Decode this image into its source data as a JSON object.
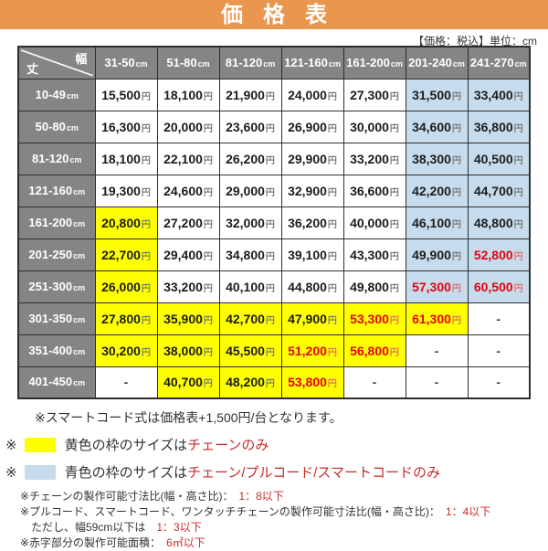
{
  "title": "価格表",
  "tax_note": "【価格：税込】単位：cm",
  "colors": {
    "banner_orange": "#E9964E",
    "header_gray": "#858585",
    "highlight_yellow": "#FFFF00",
    "highlight_blue": "#C6DCEC",
    "price_red": "#E60012",
    "note_red": "#C92B2B"
  },
  "chart_data": {
    "type": "table",
    "title": "価格表",
    "price_unit": "円 (税込)",
    "size_unit": "cm",
    "width_columns_cm": [
      "31-50",
      "51-80",
      "81-120",
      "121-160",
      "161-200",
      "201-240",
      "241-270"
    ],
    "height_rows_cm": [
      "10-49",
      "50-80",
      "81-120",
      "121-160",
      "161-200",
      "201-250",
      "251-300",
      "301-350",
      "351-400",
      "401-450"
    ],
    "prices_yen": [
      [
        15500,
        18100,
        21900,
        24000,
        27300,
        31500,
        33400
      ],
      [
        16300,
        20000,
        23600,
        26900,
        30000,
        34600,
        36800
      ],
      [
        18100,
        22100,
        26200,
        29900,
        33200,
        38300,
        40500
      ],
      [
        19300,
        24600,
        29000,
        32900,
        36600,
        42200,
        44700
      ],
      [
        20800,
        27200,
        32000,
        36200,
        40000,
        46100,
        48800
      ],
      [
        22700,
        29400,
        34800,
        39100,
        43300,
        49900,
        52800
      ],
      [
        26000,
        33200,
        40100,
        44800,
        49800,
        57300,
        60500
      ],
      [
        27800,
        35900,
        42700,
        47900,
        53300,
        61300,
        null
      ],
      [
        30200,
        38000,
        45500,
        51200,
        56800,
        null,
        null
      ],
      [
        null,
        40700,
        48200,
        53800,
        null,
        null,
        null
      ]
    ],
    "legend": {
      "yellow": "チェーンのみ",
      "blue": "チェーン/プルコード/スマートコードのみ",
      "red_text": "製作可能面積 6㎡以下"
    }
  },
  "table": {
    "corner": {
      "width_label": "幅",
      "height_label": "丈"
    },
    "col_headers": [
      {
        "range": "31-50",
        "unit": "cm"
      },
      {
        "range": "51-80",
        "unit": "cm"
      },
      {
        "range": "81-120",
        "unit": "cm"
      },
      {
        "range": "121-160",
        "unit": "cm"
      },
      {
        "range": "161-200",
        "unit": "cm"
      },
      {
        "range": "201-240",
        "unit": "cm"
      },
      {
        "range": "241-270",
        "unit": "cm"
      }
    ],
    "rows": [
      {
        "label": "10-49",
        "unit": "cm",
        "cells": [
          {
            "value": "15,500",
            "unit": "円",
            "bg": "",
            "red": false
          },
          {
            "value": "18,100",
            "unit": "円",
            "bg": "",
            "red": false
          },
          {
            "value": "21,900",
            "unit": "円",
            "bg": "",
            "red": false
          },
          {
            "value": "24,000",
            "unit": "円",
            "bg": "",
            "red": false
          },
          {
            "value": "27,300",
            "unit": "円",
            "bg": "",
            "red": false
          },
          {
            "value": "31,500",
            "unit": "円",
            "bg": "b",
            "red": false
          },
          {
            "value": "33,400",
            "unit": "円",
            "bg": "b",
            "red": false
          }
        ]
      },
      {
        "label": "50-80",
        "unit": "cm",
        "cells": [
          {
            "value": "16,300",
            "unit": "円",
            "bg": "",
            "red": false
          },
          {
            "value": "20,000",
            "unit": "円",
            "bg": "",
            "red": false
          },
          {
            "value": "23,600",
            "unit": "円",
            "bg": "",
            "red": false
          },
          {
            "value": "26,900",
            "unit": "円",
            "bg": "",
            "red": false
          },
          {
            "value": "30,000",
            "unit": "円",
            "bg": "",
            "red": false
          },
          {
            "value": "34,600",
            "unit": "円",
            "bg": "b",
            "red": false
          },
          {
            "value": "36,800",
            "unit": "円",
            "bg": "b",
            "red": false
          }
        ]
      },
      {
        "label": "81-120",
        "unit": "cm",
        "cells": [
          {
            "value": "18,100",
            "unit": "円",
            "bg": "",
            "red": false
          },
          {
            "value": "22,100",
            "unit": "円",
            "bg": "",
            "red": false
          },
          {
            "value": "26,200",
            "unit": "円",
            "bg": "",
            "red": false
          },
          {
            "value": "29,900",
            "unit": "円",
            "bg": "",
            "red": false
          },
          {
            "value": "33,200",
            "unit": "円",
            "bg": "",
            "red": false
          },
          {
            "value": "38,300",
            "unit": "円",
            "bg": "b",
            "red": false
          },
          {
            "value": "40,500",
            "unit": "円",
            "bg": "b",
            "red": false
          }
        ]
      },
      {
        "label": "121-160",
        "unit": "cm",
        "cells": [
          {
            "value": "19,300",
            "unit": "円",
            "bg": "",
            "red": false
          },
          {
            "value": "24,600",
            "unit": "円",
            "bg": "",
            "red": false
          },
          {
            "value": "29,000",
            "unit": "円",
            "bg": "",
            "red": false
          },
          {
            "value": "32,900",
            "unit": "円",
            "bg": "",
            "red": false
          },
          {
            "value": "36,600",
            "unit": "円",
            "bg": "",
            "red": false
          },
          {
            "value": "42,200",
            "unit": "円",
            "bg": "b",
            "red": false
          },
          {
            "value": "44,700",
            "unit": "円",
            "bg": "b",
            "red": false
          }
        ]
      },
      {
        "label": "161-200",
        "unit": "cm",
        "cells": [
          {
            "value": "20,800",
            "unit": "円",
            "bg": "y",
            "red": false
          },
          {
            "value": "27,200",
            "unit": "円",
            "bg": "",
            "red": false
          },
          {
            "value": "32,000",
            "unit": "円",
            "bg": "",
            "red": false
          },
          {
            "value": "36,200",
            "unit": "円",
            "bg": "",
            "red": false
          },
          {
            "value": "40,000",
            "unit": "円",
            "bg": "",
            "red": false
          },
          {
            "value": "46,100",
            "unit": "円",
            "bg": "b",
            "red": false
          },
          {
            "value": "48,800",
            "unit": "円",
            "bg": "b",
            "red": false
          }
        ]
      },
      {
        "label": "201-250",
        "unit": "cm",
        "cells": [
          {
            "value": "22,700",
            "unit": "円",
            "bg": "y",
            "red": false
          },
          {
            "value": "29,400",
            "unit": "円",
            "bg": "",
            "red": false
          },
          {
            "value": "34,800",
            "unit": "円",
            "bg": "",
            "red": false
          },
          {
            "value": "39,100",
            "unit": "円",
            "bg": "",
            "red": false
          },
          {
            "value": "43,300",
            "unit": "円",
            "bg": "",
            "red": false
          },
          {
            "value": "49,900",
            "unit": "円",
            "bg": "b",
            "red": false
          },
          {
            "value": "52,800",
            "unit": "円",
            "bg": "b",
            "red": true
          }
        ]
      },
      {
        "label": "251-300",
        "unit": "cm",
        "cells": [
          {
            "value": "26,000",
            "unit": "円",
            "bg": "y",
            "red": false
          },
          {
            "value": "33,200",
            "unit": "円",
            "bg": "",
            "red": false
          },
          {
            "value": "40,100",
            "unit": "円",
            "bg": "",
            "red": false
          },
          {
            "value": "44,800",
            "unit": "円",
            "bg": "",
            "red": false
          },
          {
            "value": "49,800",
            "unit": "円",
            "bg": "",
            "red": false
          },
          {
            "value": "57,300",
            "unit": "円",
            "bg": "b",
            "red": true
          },
          {
            "value": "60,500",
            "unit": "円",
            "bg": "b",
            "red": true
          }
        ]
      },
      {
        "label": "301-350",
        "unit": "cm",
        "cells": [
          {
            "value": "27,800",
            "unit": "円",
            "bg": "y",
            "red": false
          },
          {
            "value": "35,900",
            "unit": "円",
            "bg": "y",
            "red": false
          },
          {
            "value": "42,700",
            "unit": "円",
            "bg": "y",
            "red": false
          },
          {
            "value": "47,900",
            "unit": "円",
            "bg": "y",
            "red": false
          },
          {
            "value": "53,300",
            "unit": "円",
            "bg": "y",
            "red": true
          },
          {
            "value": "61,300",
            "unit": "円",
            "bg": "y",
            "red": true
          },
          {
            "value": "-",
            "unit": "",
            "bg": "",
            "red": false
          }
        ]
      },
      {
        "label": "351-400",
        "unit": "cm",
        "cells": [
          {
            "value": "30,200",
            "unit": "円",
            "bg": "y",
            "red": false
          },
          {
            "value": "38,000",
            "unit": "円",
            "bg": "y",
            "red": false
          },
          {
            "value": "45,500",
            "unit": "円",
            "bg": "y",
            "red": false
          },
          {
            "value": "51,200",
            "unit": "円",
            "bg": "y",
            "red": true
          },
          {
            "value": "56,800",
            "unit": "円",
            "bg": "y",
            "red": true
          },
          {
            "value": "-",
            "unit": "",
            "bg": "",
            "red": false
          },
          {
            "value": "-",
            "unit": "",
            "bg": "",
            "red": false
          }
        ]
      },
      {
        "label": "401-450",
        "unit": "cm",
        "cells": [
          {
            "value": "-",
            "unit": "",
            "bg": "",
            "red": false
          },
          {
            "value": "40,700",
            "unit": "円",
            "bg": "y",
            "red": false
          },
          {
            "value": "48,200",
            "unit": "円",
            "bg": "y",
            "red": false
          },
          {
            "value": "53,800",
            "unit": "円",
            "bg": "y",
            "red": true
          },
          {
            "value": "-",
            "unit": "",
            "bg": "",
            "red": false
          },
          {
            "value": "-",
            "unit": "",
            "bg": "",
            "red": false
          },
          {
            "value": "-",
            "unit": "",
            "bg": "",
            "red": false
          }
        ]
      }
    ]
  },
  "notes": {
    "smart_cord": "※スマートコード式は価格表+1,500円/台となります。",
    "yellow_note": {
      "marker": "※",
      "prefix": "黄色の枠のサイズは",
      "highlight": "チェーンのみ"
    },
    "blue_note": {
      "marker": "※",
      "prefix": "青色の枠のサイズは",
      "highlight": "チェーン/プルコード/スマートコードのみ"
    },
    "small_notes": [
      {
        "prefix": "※チェーンの製作可能寸法比(幅・高さ比)：　",
        "highlight": "1：8以下"
      },
      {
        "prefix": "※プルコード、スマートコード、ワンタッチチェーンの製作可能寸法比(幅・高さ比)：　",
        "highlight": "1：4以下"
      },
      {
        "prefix": "　ただし、幅59cm以下は　",
        "highlight": "1：3以下"
      },
      {
        "prefix": "※赤字部分の製作可能面積：　",
        "highlight": "6㎡以下"
      }
    ]
  }
}
